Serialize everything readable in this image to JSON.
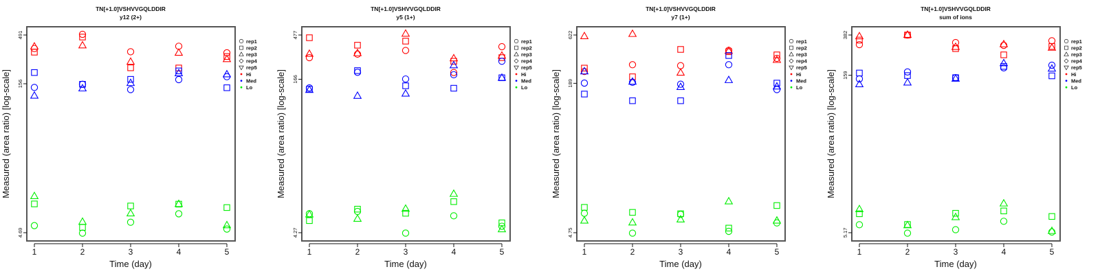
{
  "colors": {
    "Hi": "#ff0000",
    "Med": "#0000ff",
    "Lo": "#00ee00",
    "frame": "#555555"
  },
  "chart_data": [
    {
      "type": "scatter",
      "title": "TN[+1.0]VSHVVGQLDDIR",
      "subtitle": "y12 (2+)",
      "xlabel": "Time (day)",
      "ylabel": "Measured (area ratio) [log-scale]",
      "yscale": "log",
      "ylim": [
        4.69,
        491
      ],
      "yticks": [
        "4.69",
        "156",
        "491"
      ],
      "xticks": [
        "1",
        "2",
        "3",
        "4",
        "5"
      ],
      "legend": {
        "placement": "right",
        "entries": [
          "rep1",
          "rep2",
          "rep3",
          "rep4",
          "rep5",
          "Hi",
          "Med",
          "Lo"
        ]
      },
      "x": [
        1,
        2,
        3,
        4,
        5
      ],
      "series": [
        {
          "group": "Hi",
          "rep": "rep1",
          "values": [
            357,
            499,
            331,
            377,
            323
          ]
        },
        {
          "group": "Hi",
          "rep": "rep2",
          "values": [
            328,
            468,
            227,
            226,
            296
          ]
        },
        {
          "group": "Hi",
          "rep": "rep3",
          "values": [
            375,
            385,
            262,
            324,
            279
          ]
        },
        {
          "group": "Med",
          "rep": "rep1",
          "values": [
            143,
            154,
            136,
            172,
            184
          ]
        },
        {
          "group": "Med",
          "rep": "rep2",
          "values": [
            203,
            154,
            173,
            211,
            142
          ]
        },
        {
          "group": "Med",
          "rep": "rep3",
          "values": [
            118,
            140,
            159,
            200,
            195
          ]
        },
        {
          "group": "Lo",
          "rep": "rep1",
          "values": [
            5.54,
            4.64,
            6.0,
            7.32,
            5.11
          ]
        },
        {
          "group": "Lo",
          "rep": "rep2",
          "values": [
            9.23,
            5.31,
            8.79,
            9.18,
            8.47
          ]
        },
        {
          "group": "Lo",
          "rep": "rep3",
          "values": [
            11.1,
            6.07,
            7.4,
            9.23,
            5.6
          ]
        }
      ]
    },
    {
      "type": "scatter",
      "title": "TN[+1.0]VSHVVGQLDDIR",
      "subtitle": "y5 (1+)",
      "xlabel": "Time (day)",
      "ylabel": "Measured (area ratio) [log-scale]",
      "yscale": "log",
      "ylim": [
        4.27,
        477
      ],
      "yticks": [
        "4.27",
        "166",
        "477"
      ],
      "xticks": [
        "1",
        "2",
        "3",
        "4",
        "5"
      ],
      "legend": {
        "placement": "right",
        "entries": [
          "rep1",
          "rep2",
          "rep3",
          "rep4",
          "rep5",
          "Hi",
          "Med",
          "Lo"
        ]
      },
      "x": [
        1,
        2,
        3,
        4,
        5
      ],
      "series": [
        {
          "group": "Hi",
          "rep": "rep1",
          "values": [
            278,
            302,
            330,
            195,
            361
          ]
        },
        {
          "group": "Hi",
          "rep": "rep2",
          "values": [
            447,
            374,
            412,
            255,
            278
          ]
        },
        {
          "group": "Hi",
          "rep": "rep3",
          "values": [
            305,
            310,
            493,
            274,
            292
          ]
        },
        {
          "group": "Med",
          "rep": "rep1",
          "values": [
            135,
            196,
            167,
            185,
            255
          ]
        },
        {
          "group": "Med",
          "rep": "rep2",
          "values": [
            131,
            204,
            142,
            134,
            172
          ]
        },
        {
          "group": "Med",
          "rep": "rep3",
          "values": [
            129,
            112,
            118,
            232,
            172
          ]
        },
        {
          "group": "Lo",
          "rep": "rep1",
          "values": [
            6.72,
            7.09,
            4.23,
            6.39,
            4.98
          ]
        },
        {
          "group": "Lo",
          "rep": "rep2",
          "values": [
            5.7,
            7.49,
            6.79,
            8.96,
            5.4
          ]
        },
        {
          "group": "Lo",
          "rep": "rep3",
          "values": [
            6.61,
            5.96,
            7.57,
            10.8,
            4.64
          ]
        }
      ]
    },
    {
      "type": "scatter",
      "title": "TN[+1.0]VSHVVGQLDDIR",
      "subtitle": "y7 (1+)",
      "xlabel": "Time (day)",
      "ylabel": "Measured (area ratio) [log-scale]",
      "yscale": "log",
      "ylim": [
        4.75,
        622
      ],
      "yticks": [
        "4.75",
        "189",
        "622"
      ],
      "xticks": [
        "1",
        "2",
        "3",
        "4",
        "5"
      ],
      "legend": {
        "placement": "right",
        "entries": [
          "rep1",
          "rep2",
          "rep3",
          "rep4",
          "rep5",
          "Hi",
          "Med",
          "Lo"
        ]
      },
      "x": [
        1,
        2,
        3,
        4,
        5
      ],
      "series": [
        {
          "group": "Hi",
          "rep": "rep1",
          "values": [
            253,
            299,
            292,
            426,
            350
          ]
        },
        {
          "group": "Hi",
          "rep": "rep2",
          "values": [
            275,
            222,
            436,
            412,
            381
          ]
        },
        {
          "group": "Hi",
          "rep": "rep3",
          "values": [
            605,
            640,
            246,
            421,
            337
          ]
        },
        {
          "group": "Med",
          "rep": "rep1",
          "values": [
            190,
            194,
            185,
            299,
            162
          ]
        },
        {
          "group": "Med",
          "rep": "rep2",
          "values": [
            145,
            123,
            123,
            375,
            190
          ]
        },
        {
          "group": "Med",
          "rep": "rep3",
          "values": [
            254,
            197,
            173,
            205,
            175
          ]
        },
        {
          "group": "Lo",
          "rep": "rep1",
          "values": [
            7.67,
            4.7,
            7.46,
            4.91,
            6.05
          ]
        },
        {
          "group": "Lo",
          "rep": "rep2",
          "values": [
            8.87,
            7.84,
            7.58,
            5.32,
            9.28
          ]
        },
        {
          "group": "Lo",
          "rep": "rep3",
          "values": [
            6.41,
            6.12,
            6.59,
            10.3,
            6.41
          ]
        }
      ]
    },
    {
      "type": "scatter",
      "title": "TN[+1.0]VSHVVGQLDDIR",
      "subtitle": "sum of ions",
      "xlabel": "Time (day)",
      "ylabel": "Measured (area ratio) [log-scale]",
      "yscale": "log",
      "ylim": [
        5.17,
        382
      ],
      "yticks": [
        "5.17",
        "159",
        "382"
      ],
      "xticks": [
        "1",
        "2",
        "3",
        "4",
        "5"
      ],
      "legend": {
        "placement": "right",
        "entries": [
          "rep1",
          "rep2",
          "rep3",
          "rep4",
          "rep5",
          "Hi",
          "Med",
          "Lo"
        ]
      },
      "x": [
        1,
        2,
        3,
        4,
        5
      ],
      "series": [
        {
          "group": "Hi",
          "rep": "rep1",
          "values": [
            310,
            382,
            324,
            305,
            337
          ]
        },
        {
          "group": "Hi",
          "rep": "rep2",
          "values": [
            342,
            382,
            284,
            248,
            298
          ]
        },
        {
          "group": "Hi",
          "rep": "rep3",
          "values": [
            372,
            384,
            295,
            313,
            290
          ]
        },
        {
          "group": "Med",
          "rep": "rep1",
          "values": [
            147,
            171,
            151,
            187,
            198
          ]
        },
        {
          "group": "Med",
          "rep": "rep2",
          "values": [
            167,
            158,
            151,
            193,
            157
          ]
        },
        {
          "group": "Med",
          "rep": "rep3",
          "values": [
            131,
            136,
            148,
            207,
            184
          ]
        },
        {
          "group": "Lo",
          "rep": "rep1",
          "values": [
            6.15,
            5.12,
            5.52,
            6.63,
            5.25
          ]
        },
        {
          "group": "Lo",
          "rep": "rep2",
          "values": [
            7.81,
            6.18,
            7.89,
            8.3,
            7.36
          ]
        },
        {
          "group": "Lo",
          "rep": "rep3",
          "values": [
            8.64,
            6.09,
            7.26,
            9.78,
            5.38
          ]
        }
      ]
    }
  ]
}
